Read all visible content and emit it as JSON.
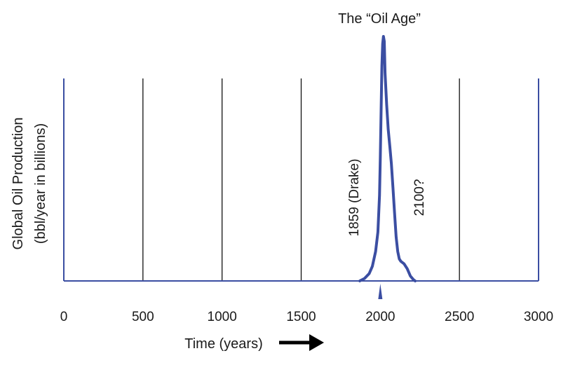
{
  "chart_data": {
    "type": "line",
    "title": "The “Oil Age”",
    "xlabel": "Time (years)",
    "ylabel": [
      "Global Oil Production",
      "(bbl/year in billions)"
    ],
    "xlim": [
      0,
      3000
    ],
    "x_ticks": [
      "0",
      "500",
      "1000",
      "1500",
      "2000",
      "2500",
      "3000"
    ],
    "gridlines_x": [
      0,
      500,
      1000,
      1500,
      2500,
      3000
    ],
    "grid": true,
    "marker_x": 2000,
    "annotations": [
      "1859 (Drake)",
      "2100?"
    ],
    "series": [
      {
        "x": [
          1870,
          1900,
          1930,
          1950,
          1970,
          1985,
          1995,
          2000,
          2005,
          2010,
          2015,
          2020,
          2025,
          2030,
          2040,
          2050,
          2060,
          2070,
          2080,
          2090,
          2100,
          2110,
          2120,
          2130,
          2150,
          2170,
          2190,
          2210,
          2220
        ],
        "y": [
          0.0,
          0.01,
          0.03,
          0.06,
          0.12,
          0.2,
          0.35,
          0.5,
          0.7,
          0.88,
          0.97,
          1.0,
          0.98,
          0.85,
          0.72,
          0.62,
          0.55,
          0.48,
          0.38,
          0.28,
          0.18,
          0.12,
          0.09,
          0.08,
          0.07,
          0.05,
          0.02,
          0.005,
          0.0
        ]
      }
    ],
    "colors": {
      "line": "#3b4ea2",
      "axis": "#3b4ea2",
      "grid": "#111111"
    }
  }
}
